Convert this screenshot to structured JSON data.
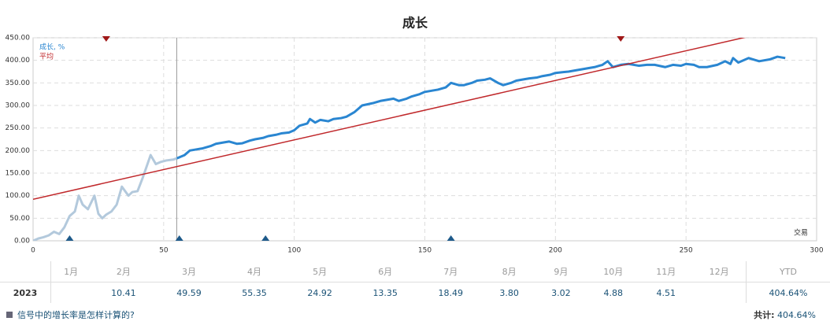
{
  "chart_data": {
    "type": "line",
    "title": "成长",
    "x_label": "交易",
    "xlim": [
      0,
      300
    ],
    "ylim": [
      0,
      450
    ],
    "xticks": [
      0,
      50,
      100,
      150,
      200,
      250,
      300
    ],
    "yticks": [
      {
        "value": 0,
        "label": "0.00"
      },
      {
        "value": 50,
        "label": "50.00"
      },
      {
        "value": 100,
        "label": "100.00"
      },
      {
        "value": 150,
        "label": "150.00"
      },
      {
        "value": 200,
        "label": "200.00"
      },
      {
        "value": 250,
        "label": "250.00"
      },
      {
        "value": 300,
        "label": "300.00"
      },
      {
        "value": 350,
        "label": "350.00"
      },
      {
        "value": 400,
        "label": "400.00"
      },
      {
        "value": 450,
        "label": "450.00"
      }
    ],
    "grid": true,
    "legend": "top-left",
    "marker_x": 55,
    "faded_color": "#b3c9dc",
    "series": [
      {
        "name": "成长, %",
        "color": "#2a86d1",
        "x": [
          0,
          2,
          4,
          6,
          8,
          10,
          12,
          14,
          16,
          17.5,
          19,
          21,
          23.5,
          25,
          26.5,
          28,
          30,
          32,
          34,
          36.5,
          38,
          40,
          42,
          45,
          47,
          49,
          51,
          53.7,
          56,
          58,
          60,
          62,
          65,
          68,
          70,
          73,
          75,
          78,
          80,
          83,
          85,
          88,
          90,
          93,
          95,
          98,
          100,
          102,
          105,
          106,
          108,
          110,
          113,
          115,
          118,
          120,
          123,
          126,
          130,
          133,
          135,
          138,
          140,
          143,
          145,
          148,
          150,
          153,
          155,
          158,
          160,
          163,
          165,
          168,
          170,
          173,
          175,
          178,
          180,
          183,
          185,
          188,
          190,
          193,
          195,
          198,
          200,
          203,
          205,
          208,
          210,
          213,
          215,
          218,
          220,
          222,
          225,
          228,
          232,
          235,
          238,
          242,
          245,
          248,
          250,
          253,
          255,
          258,
          262,
          265,
          267,
          268,
          270,
          274,
          278,
          282,
          285,
          288
        ],
        "values": [
          0,
          5,
          8,
          12,
          20,
          15,
          30,
          55,
          65,
          100,
          80,
          70,
          100,
          60,
          50,
          58,
          65,
          80,
          120,
          100,
          108,
          110,
          140,
          190,
          170,
          175,
          178,
          180,
          185,
          190,
          200,
          202,
          205,
          210,
          215,
          218,
          220,
          215,
          216,
          222,
          225,
          228,
          232,
          235,
          238,
          240,
          245,
          255,
          260,
          270,
          262,
          268,
          265,
          270,
          272,
          275,
          285,
          300,
          305,
          310,
          312,
          315,
          310,
          315,
          320,
          325,
          330,
          333,
          335,
          340,
          350,
          345,
          345,
          350,
          355,
          357,
          360,
          350,
          345,
          350,
          355,
          358,
          360,
          362,
          365,
          368,
          372,
          374,
          375,
          378,
          380,
          383,
          385,
          390,
          398,
          385,
          390,
          392,
          388,
          390,
          390,
          385,
          390,
          388,
          392,
          390,
          385,
          385,
          390,
          398,
          392,
          405,
          395,
          405,
          398,
          402,
          408,
          405
        ]
      },
      {
        "name": "平均",
        "color": "#c0282b",
        "x": [
          0,
          300
        ],
        "values": [
          92,
          487
        ]
      }
    ],
    "top_markers": [
      28,
      225
    ],
    "bottom_markers": [
      14,
      56,
      89,
      160
    ]
  },
  "table": {
    "header": [
      "1月",
      "2月",
      "3月",
      "4月",
      "5月",
      "6月",
      "7月",
      "8月",
      "9月",
      "10月",
      "11月",
      "12月",
      "YTD"
    ],
    "rows": [
      {
        "year": "2023",
        "cells": [
          null,
          "10.41",
          "49.59",
          "55.35",
          "24.92",
          "13.35",
          "18.49",
          "3.80",
          "3.02",
          "4.88",
          "4.51",
          null,
          "404.64%"
        ]
      }
    ]
  },
  "footer": {
    "link": "信号中的增长率是怎样计算的?",
    "total_label": "共计:",
    "total": "404.64%"
  }
}
